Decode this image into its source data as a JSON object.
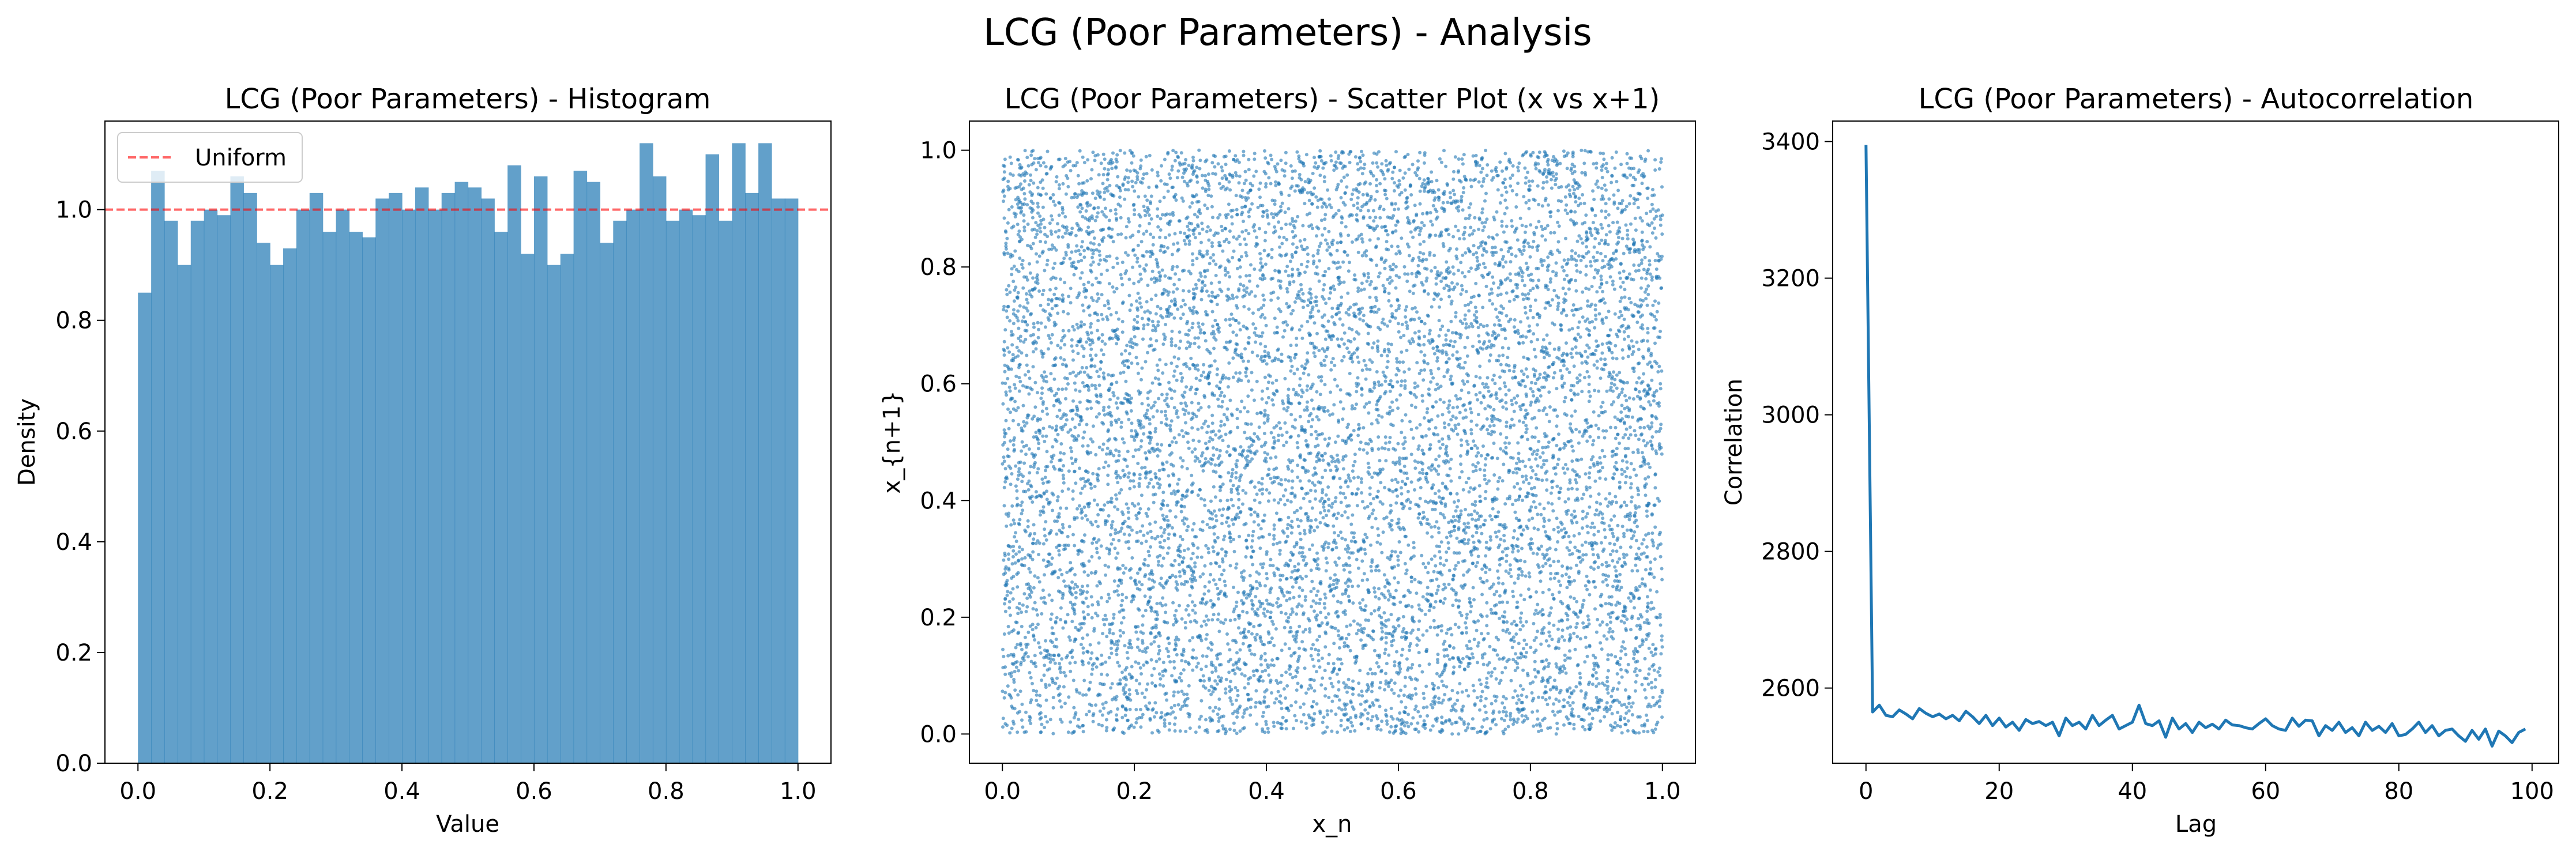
{
  "suptitle": "LCG (Poor Parameters) - Analysis",
  "chart_data": [
    {
      "type": "bar",
      "title": "LCG (Poor Parameters) - Histogram",
      "xlabel": "Value",
      "ylabel": "Density",
      "xlim": [
        -0.05,
        1.05
      ],
      "ylim": [
        0,
        1.16
      ],
      "xticks": [
        "0.0",
        "0.2",
        "0.4",
        "0.6",
        "0.8",
        "1.0"
      ],
      "yticks": [
        "0.0",
        "0.2",
        "0.4",
        "0.6",
        "0.8",
        "1.0"
      ],
      "bin_range": [
        0,
        1
      ],
      "values": [
        0.85,
        1.07,
        0.98,
        0.9,
        0.98,
        1.0,
        0.99,
        1.06,
        1.03,
        0.94,
        0.9,
        0.93,
        1.0,
        1.03,
        0.96,
        1.0,
        0.96,
        0.95,
        1.02,
        1.03,
        1.0,
        1.04,
        1.0,
        1.03,
        1.05,
        1.04,
        1.02,
        0.96,
        1.08,
        0.92,
        1.06,
        0.9,
        0.92,
        1.07,
        1.05,
        0.94,
        0.98,
        1.0,
        1.12,
        1.06,
        0.98,
        1.0,
        0.99,
        1.1,
        0.98,
        1.12,
        1.03,
        1.12,
        1.02,
        1.02
      ],
      "bar_color": "#1f77b4",
      "bar_alpha": 0.7,
      "reference_line": {
        "y": 1.0,
        "label": "Uniform",
        "color": "#ff0000",
        "style": "dashed",
        "alpha": 0.6
      },
      "legend": [
        "Uniform"
      ],
      "legend_position": "upper-left"
    },
    {
      "type": "scatter",
      "title": "LCG (Poor Parameters) - Scatter Plot (x vs x+1)",
      "xlabel": "x_n",
      "ylabel": "x_{n+1}",
      "xlim": [
        -0.05,
        1.05
      ],
      "ylim": [
        -0.05,
        1.05
      ],
      "xticks": [
        "0.0",
        "0.2",
        "0.4",
        "0.6",
        "0.8",
        "1.0"
      ],
      "yticks": [
        "0.0",
        "0.2",
        "0.4",
        "0.6",
        "0.8",
        "1.0"
      ],
      "point_count": 10000,
      "distribution": "uniform over [0,1]x[0,1]",
      "color": "#1f77b4",
      "alpha": 0.6
    },
    {
      "type": "line",
      "title": "LCG (Poor Parameters) - Autocorrelation",
      "xlabel": "Lag",
      "ylabel": "Correlation",
      "xlim": [
        -5,
        104
      ],
      "ylim": [
        2490,
        3430
      ],
      "xticks": [
        "0",
        "20",
        "40",
        "60",
        "80",
        "100"
      ],
      "yticks": [
        "2600",
        "2800",
        "3000",
        "3200",
        "3400"
      ],
      "x": [
        0,
        1,
        2,
        3,
        4,
        5,
        6,
        7,
        8,
        9,
        10,
        11,
        12,
        13,
        14,
        15,
        16,
        17,
        18,
        19,
        20,
        21,
        22,
        23,
        24,
        25,
        26,
        27,
        28,
        29,
        30,
        31,
        32,
        33,
        34,
        35,
        36,
        37,
        38,
        39,
        40,
        41,
        42,
        43,
        44,
        45,
        46,
        47,
        48,
        49,
        50,
        51,
        52,
        53,
        54,
        55,
        56,
        57,
        58,
        59,
        60,
        61,
        62,
        63,
        64,
        65,
        66,
        67,
        68,
        69,
        70,
        71,
        72,
        73,
        74,
        75,
        76,
        77,
        78,
        79,
        80,
        81,
        82,
        83,
        84,
        85,
        86,
        87,
        88,
        89,
        90,
        91,
        92,
        93,
        94,
        95,
        96,
        97,
        98,
        99
      ],
      "values": [
        3395,
        2565,
        2575,
        2560,
        2558,
        2568,
        2562,
        2555,
        2570,
        2563,
        2558,
        2562,
        2555,
        2560,
        2552,
        2566,
        2558,
        2548,
        2560,
        2545,
        2556,
        2543,
        2550,
        2538,
        2554,
        2548,
        2551,
        2545,
        2550,
        2530,
        2556,
        2545,
        2550,
        2540,
        2560,
        2545,
        2553,
        2560,
        2540,
        2545,
        2550,
        2575,
        2548,
        2545,
        2552,
        2528,
        2556,
        2540,
        2548,
        2535,
        2550,
        2542,
        2547,
        2540,
        2553,
        2546,
        2545,
        2542,
        2540,
        2548,
        2555,
        2545,
        2540,
        2538,
        2556,
        2544,
        2553,
        2552,
        2530,
        2545,
        2538,
        2550,
        2535,
        2542,
        2530,
        2550,
        2538,
        2544,
        2535,
        2548,
        2530,
        2532,
        2540,
        2550,
        2535,
        2545,
        2530,
        2538,
        2540,
        2530,
        2522,
        2538,
        2525,
        2540,
        2515,
        2537,
        2530,
        2520,
        2535,
        2540
      ],
      "color": "#1f77b4"
    }
  ]
}
